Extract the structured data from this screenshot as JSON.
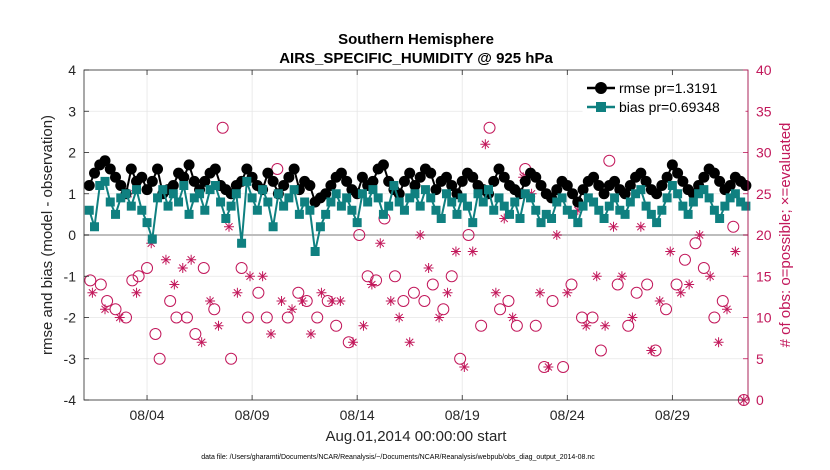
{
  "chart_data": {
    "type": "line",
    "title": "Southern Hemisphere",
    "subtitle": "AIRS_SPECIFIC_HUMIDITY @ 925 hPa",
    "xlabel": "Aug.01,2014 00:00:00 start",
    "ylabel": "rmse and bias (model - observation)",
    "ylabel_right": "# of obs: o=possible; ×=evaluated",
    "footer": "data file: /Users/gharamti/Documents/NCAR/Reanalysis/~/Documents/NCAR/Reanalysis/webpub/obs_diag_output_2014-08.nc",
    "xlim": [
      1,
      32.6
    ],
    "ylim": [
      -4,
      4
    ],
    "ylim_right": [
      0,
      40
    ],
    "x_ticks": [
      4,
      9,
      14,
      19,
      24,
      29
    ],
    "x_tick_labels": [
      "08/04",
      "08/09",
      "08/14",
      "08/19",
      "08/24",
      "08/29"
    ],
    "y_ticks": [
      -4,
      -3,
      -2,
      -1,
      0,
      1,
      2,
      3,
      4
    ],
    "y_ticks_right": [
      0,
      5,
      10,
      15,
      20,
      25,
      30,
      35,
      40
    ],
    "grid": true,
    "legend": "top-right",
    "colors": {
      "rmse": "#000000",
      "bias": "#0f8080",
      "obs": "#c2185b",
      "zero_line": "#bdbdbd"
    },
    "x": [
      1.25,
      1.5,
      1.75,
      2.0,
      2.25,
      2.5,
      2.75,
      3.0,
      3.25,
      3.5,
      3.75,
      4.0,
      4.25,
      4.5,
      4.75,
      5.0,
      5.25,
      5.5,
      5.75,
      6.0,
      6.25,
      6.5,
      6.75,
      7.0,
      7.25,
      7.5,
      7.75,
      8.0,
      8.25,
      8.5,
      8.75,
      9.0,
      9.25,
      9.5,
      9.75,
      10.0,
      10.25,
      10.5,
      10.75,
      11.0,
      11.25,
      11.5,
      11.75,
      12.0,
      12.25,
      12.5,
      12.75,
      13.0,
      13.25,
      13.5,
      13.75,
      14.0,
      14.25,
      14.5,
      14.75,
      15.0,
      15.25,
      15.5,
      15.75,
      16.0,
      16.25,
      16.5,
      16.75,
      17.0,
      17.25,
      17.5,
      17.75,
      18.0,
      18.25,
      18.5,
      18.75,
      19.0,
      19.25,
      19.5,
      19.75,
      20.0,
      20.25,
      20.5,
      20.75,
      21.0,
      21.25,
      21.5,
      21.75,
      22.0,
      22.25,
      22.5,
      22.75,
      23.0,
      23.25,
      23.5,
      23.75,
      24.0,
      24.25,
      24.5,
      24.75,
      25.0,
      25.25,
      25.5,
      25.75,
      26.0,
      26.25,
      26.5,
      26.75,
      27.0,
      27.25,
      27.5,
      27.75,
      28.0,
      28.25,
      28.5,
      28.75,
      29.0,
      29.25,
      29.5,
      29.75,
      30.0,
      30.25,
      30.5,
      30.75,
      31.0,
      31.25,
      31.5,
      31.75,
      32.0,
      32.25,
      32.5
    ],
    "series": [
      {
        "name": "rmse pr=1.3191",
        "marker": "circle",
        "values": [
          1.2,
          1.5,
          1.7,
          1.8,
          1.6,
          1.4,
          1.2,
          1.0,
          1.6,
          1.3,
          1.4,
          1.1,
          1.3,
          1.6,
          1.0,
          1.1,
          1.2,
          1.5,
          1.4,
          1.7,
          1.3,
          1.1,
          1.3,
          1.5,
          1.6,
          1.2,
          1.1,
          1.0,
          1.2,
          1.3,
          1.6,
          1.4,
          1.2,
          1.1,
          1.5,
          1.3,
          1.0,
          1.2,
          1.4,
          1.6,
          1.1,
          1.3,
          1.2,
          0.8,
          0.9,
          1.0,
          1.2,
          1.4,
          1.5,
          1.3,
          1.1,
          1.0,
          1.4,
          1.2,
          1.3,
          1.6,
          1.7,
          1.3,
          1.1,
          1.0,
          1.3,
          1.5,
          1.2,
          1.4,
          1.6,
          1.5,
          1.1,
          1.3,
          1.4,
          1.2,
          1.0,
          1.3,
          1.5,
          1.4,
          1.2,
          1.1,
          1.0,
          1.3,
          1.6,
          1.4,
          1.2,
          1.1,
          1.0,
          1.3,
          1.5,
          1.4,
          1.2,
          1.0,
          0.9,
          1.1,
          1.3,
          1.2,
          1.0,
          0.8,
          1.1,
          1.3,
          1.4,
          1.2,
          1.0,
          1.2,
          1.3,
          1.1,
          1.0,
          1.2,
          1.4,
          1.5,
          1.3,
          1.1,
          1.0,
          1.2,
          1.4,
          1.7,
          1.5,
          1.3,
          1.1,
          1.0,
          1.2,
          1.4,
          1.6,
          1.5,
          1.3,
          1.1,
          1.2,
          1.4,
          1.3,
          1.2
        ]
      },
      {
        "name": "bias pr=0.69348",
        "marker": "square",
        "values": [
          0.6,
          0.2,
          1.2,
          1.3,
          0.8,
          0.5,
          0.9,
          1.0,
          0.7,
          1.1,
          0.6,
          0.3,
          -0.1,
          0.9,
          1.1,
          0.7,
          1.0,
          0.8,
          1.2,
          0.5,
          0.9,
          1.0,
          0.6,
          1.1,
          1.2,
          0.8,
          0.4,
          0.7,
          1.0,
          -0.2,
          1.3,
          0.9,
          0.6,
          1.1,
          0.8,
          0.2,
          1.0,
          0.7,
          0.9,
          1.1,
          0.5,
          0.8,
          0.6,
          -0.4,
          0.2,
          0.5,
          0.8,
          1.0,
          0.7,
          0.9,
          0.6,
          0.3,
          1.0,
          0.8,
          1.1,
          0.9,
          0.5,
          0.7,
          1.2,
          0.8,
          0.6,
          0.9,
          1.0,
          0.7,
          1.1,
          0.9,
          0.6,
          0.4,
          1.0,
          0.8,
          0.5,
          0.9,
          0.7,
          0.3,
          1.0,
          0.8,
          1.1,
          0.6,
          0.9,
          0.7,
          0.5,
          0.8,
          0.4,
          1.0,
          0.9,
          0.6,
          0.3,
          0.5,
          0.4,
          0.8,
          0.9,
          0.6,
          0.5,
          0.3,
          0.7,
          0.9,
          0.8,
          0.6,
          0.4,
          0.7,
          0.9,
          0.6,
          0.5,
          0.8,
          1.0,
          1.1,
          0.7,
          0.5,
          0.3,
          0.6,
          0.9,
          1.2,
          1.0,
          0.7,
          0.5,
          0.8,
          1.0,
          1.1,
          0.9,
          0.6,
          0.4,
          0.7,
          0.9,
          1.0,
          0.8,
          0.7
        ]
      }
    ],
    "obs_possible": [
      {
        "x": 1.3,
        "y": 14.5
      },
      {
        "x": 1.8,
        "y": 14
      },
      {
        "x": 2.1,
        "y": 12
      },
      {
        "x": 2.5,
        "y": 11
      },
      {
        "x": 3.0,
        "y": 10
      },
      {
        "x": 3.3,
        "y": 14.5
      },
      {
        "x": 3.6,
        "y": 15
      },
      {
        "x": 4.0,
        "y": 16
      },
      {
        "x": 4.4,
        "y": 8
      },
      {
        "x": 4.6,
        "y": 5
      },
      {
        "x": 5.1,
        "y": 12
      },
      {
        "x": 5.4,
        "y": 10
      },
      {
        "x": 5.9,
        "y": 10
      },
      {
        "x": 6.3,
        "y": 8
      },
      {
        "x": 6.7,
        "y": 16
      },
      {
        "x": 7.2,
        "y": 11
      },
      {
        "x": 7.6,
        "y": 33
      },
      {
        "x": 8.0,
        "y": 5
      },
      {
        "x": 8.5,
        "y": 16
      },
      {
        "x": 8.8,
        "y": 10
      },
      {
        "x": 9.3,
        "y": 13
      },
      {
        "x": 9.7,
        "y": 10
      },
      {
        "x": 10.2,
        "y": 28
      },
      {
        "x": 10.7,
        "y": 10
      },
      {
        "x": 11.2,
        "y": 13
      },
      {
        "x": 11.6,
        "y": 12
      },
      {
        "x": 12.1,
        "y": 10
      },
      {
        "x": 12.6,
        "y": 12
      },
      {
        "x": 13.0,
        "y": 9
      },
      {
        "x": 13.6,
        "y": 7
      },
      {
        "x": 14.1,
        "y": 20
      },
      {
        "x": 14.5,
        "y": 15
      },
      {
        "x": 14.9,
        "y": 14.5
      },
      {
        "x": 15.3,
        "y": 22
      },
      {
        "x": 15.8,
        "y": 15
      },
      {
        "x": 16.2,
        "y": 12
      },
      {
        "x": 16.7,
        "y": 13
      },
      {
        "x": 17.2,
        "y": 12
      },
      {
        "x": 17.6,
        "y": 14
      },
      {
        "x": 18.1,
        "y": 11
      },
      {
        "x": 18.5,
        "y": 15
      },
      {
        "x": 18.9,
        "y": 5
      },
      {
        "x": 19.3,
        "y": 20
      },
      {
        "x": 19.9,
        "y": 9
      },
      {
        "x": 20.3,
        "y": 33
      },
      {
        "x": 20.8,
        "y": 11
      },
      {
        "x": 21.2,
        "y": 12
      },
      {
        "x": 21.6,
        "y": 9
      },
      {
        "x": 22.0,
        "y": 28
      },
      {
        "x": 22.5,
        "y": 9
      },
      {
        "x": 22.9,
        "y": 4
      },
      {
        "x": 23.3,
        "y": 12
      },
      {
        "x": 23.8,
        "y": 4
      },
      {
        "x": 24.2,
        "y": 14
      },
      {
        "x": 24.7,
        "y": 10
      },
      {
        "x": 25.2,
        "y": 10
      },
      {
        "x": 25.6,
        "y": 6
      },
      {
        "x": 26.0,
        "y": 29
      },
      {
        "x": 26.4,
        "y": 14
      },
      {
        "x": 26.9,
        "y": 9
      },
      {
        "x": 27.3,
        "y": 13
      },
      {
        "x": 27.8,
        "y": 14
      },
      {
        "x": 28.2,
        "y": 6
      },
      {
        "x": 28.7,
        "y": 11
      },
      {
        "x": 29.2,
        "y": 14
      },
      {
        "x": 29.6,
        "y": 17
      },
      {
        "x": 30.1,
        "y": 19
      },
      {
        "x": 30.5,
        "y": 16
      },
      {
        "x": 31.0,
        "y": 10
      },
      {
        "x": 31.4,
        "y": 12
      },
      {
        "x": 31.9,
        "y": 21
      },
      {
        "x": 32.4,
        "y": 0
      }
    ],
    "obs_evaluated": [
      {
        "x": 1.4,
        "y": 13
      },
      {
        "x": 2.0,
        "y": 11
      },
      {
        "x": 2.7,
        "y": 10
      },
      {
        "x": 3.1,
        "y": 25
      },
      {
        "x": 3.5,
        "y": 13
      },
      {
        "x": 4.2,
        "y": 19
      },
      {
        "x": 4.9,
        "y": 17
      },
      {
        "x": 5.3,
        "y": 14
      },
      {
        "x": 5.7,
        "y": 16
      },
      {
        "x": 6.1,
        "y": 17
      },
      {
        "x": 6.6,
        "y": 7
      },
      {
        "x": 7.0,
        "y": 12
      },
      {
        "x": 7.4,
        "y": 9
      },
      {
        "x": 7.9,
        "y": 21
      },
      {
        "x": 8.3,
        "y": 13
      },
      {
        "x": 8.9,
        "y": 15
      },
      {
        "x": 9.5,
        "y": 15
      },
      {
        "x": 9.9,
        "y": 8
      },
      {
        "x": 10.4,
        "y": 12
      },
      {
        "x": 10.9,
        "y": 11
      },
      {
        "x": 11.4,
        "y": 12
      },
      {
        "x": 11.8,
        "y": 8
      },
      {
        "x": 12.3,
        "y": 13
      },
      {
        "x": 12.8,
        "y": 12
      },
      {
        "x": 13.2,
        "y": 12
      },
      {
        "x": 13.8,
        "y": 7
      },
      {
        "x": 14.3,
        "y": 9
      },
      {
        "x": 14.7,
        "y": 14
      },
      {
        "x": 15.1,
        "y": 19
      },
      {
        "x": 15.6,
        "y": 12
      },
      {
        "x": 16.0,
        "y": 10
      },
      {
        "x": 16.5,
        "y": 7
      },
      {
        "x": 17.0,
        "y": 20
      },
      {
        "x": 17.4,
        "y": 16
      },
      {
        "x": 17.9,
        "y": 10
      },
      {
        "x": 18.3,
        "y": 13
      },
      {
        "x": 18.7,
        "y": 18
      },
      {
        "x": 19.1,
        "y": 4
      },
      {
        "x": 19.5,
        "y": 18
      },
      {
        "x": 20.1,
        "y": 31
      },
      {
        "x": 20.6,
        "y": 13
      },
      {
        "x": 21.0,
        "y": 22
      },
      {
        "x": 21.4,
        "y": 10
      },
      {
        "x": 21.9,
        "y": 27
      },
      {
        "x": 22.3,
        "y": 25
      },
      {
        "x": 22.7,
        "y": 13
      },
      {
        "x": 23.1,
        "y": 4
      },
      {
        "x": 23.5,
        "y": 20
      },
      {
        "x": 24.0,
        "y": 13
      },
      {
        "x": 24.5,
        "y": 23
      },
      {
        "x": 24.9,
        "y": 9
      },
      {
        "x": 25.4,
        "y": 15
      },
      {
        "x": 25.8,
        "y": 9
      },
      {
        "x": 26.2,
        "y": 21
      },
      {
        "x": 26.6,
        "y": 15
      },
      {
        "x": 27.1,
        "y": 10
      },
      {
        "x": 27.5,
        "y": 21
      },
      {
        "x": 28.0,
        "y": 6
      },
      {
        "x": 28.4,
        "y": 12
      },
      {
        "x": 28.9,
        "y": 18
      },
      {
        "x": 29.4,
        "y": 13
      },
      {
        "x": 29.8,
        "y": 14
      },
      {
        "x": 30.3,
        "y": 20
      },
      {
        "x": 30.8,
        "y": 15
      },
      {
        "x": 31.2,
        "y": 7
      },
      {
        "x": 31.6,
        "y": 11
      },
      {
        "x": 32.0,
        "y": 18
      },
      {
        "x": 32.4,
        "y": 0
      }
    ]
  }
}
